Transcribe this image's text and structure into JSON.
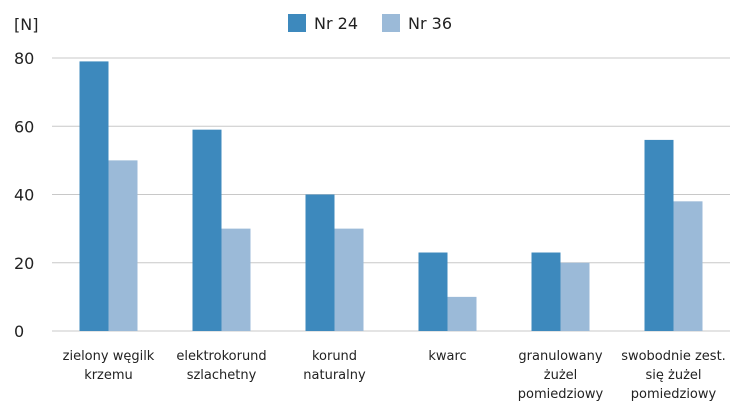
{
  "chart_data": {
    "type": "bar",
    "unit_label": "[N]",
    "categories": [
      [
        "zielony węgilk",
        "krzemu"
      ],
      [
        "elektrokorund",
        "szlachetny"
      ],
      [
        "korund",
        "naturalny"
      ],
      [
        "kwarc"
      ],
      [
        "granulowany",
        "żużel",
        "pomiedziowy"
      ],
      [
        "swobodnie zest.",
        "się żużel",
        "pomiedziowy"
      ]
    ],
    "series": [
      {
        "name": "Nr 24",
        "color": "#3d89bd",
        "values": [
          79,
          59,
          40,
          23,
          23,
          56
        ]
      },
      {
        "name": "Nr 36",
        "color": "#9bbad8",
        "values": [
          50,
          30,
          30,
          10,
          20,
          38
        ]
      }
    ],
    "ylim": [
      0,
      80
    ],
    "yticks": [
      "0",
      "20",
      "40",
      "60",
      "80"
    ],
    "grid": true,
    "legend_position": "top-center"
  }
}
